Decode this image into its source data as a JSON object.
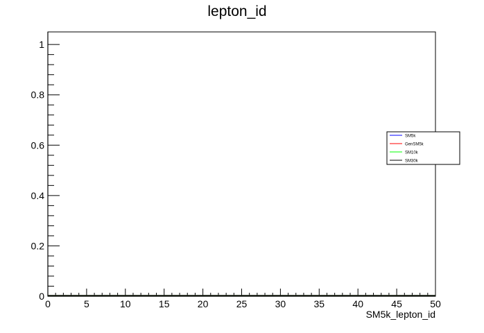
{
  "chart_data": {
    "type": "line",
    "title": "lepton_id",
    "xlabel": "SM5k_lepton_id",
    "ylabel": "",
    "xlim": [
      0,
      50
    ],
    "ylim": [
      0,
      1.05
    ],
    "x_ticks": [
      0,
      5,
      10,
      15,
      20,
      25,
      30,
      35,
      40,
      45,
      50
    ],
    "x_tick_labels": [
      "0",
      "5",
      "10",
      "15",
      "20",
      "25",
      "30",
      "35",
      "40",
      "45",
      "50"
    ],
    "y_ticks": [
      0,
      0.2,
      0.4,
      0.6,
      0.8,
      1
    ],
    "y_tick_labels": [
      "0",
      "0.2",
      "0.4",
      "0.6",
      "0.8",
      "1"
    ],
    "grid": false,
    "legend_position": "right",
    "series": [
      {
        "name": "SM5k",
        "color": "#0000ff",
        "x": [
          0,
          50
        ],
        "values": [
          0,
          0
        ]
      },
      {
        "name": "GenSM5k",
        "color": "#ff0000",
        "x": [
          0,
          50
        ],
        "values": [
          0,
          0
        ]
      },
      {
        "name": "SM10k",
        "color": "#00ff00",
        "x": [
          0,
          50
        ],
        "values": [
          0,
          0
        ]
      },
      {
        "name": "SM30k",
        "color": "#000000",
        "x": [
          0,
          50
        ],
        "values": [
          0,
          0
        ]
      }
    ]
  }
}
